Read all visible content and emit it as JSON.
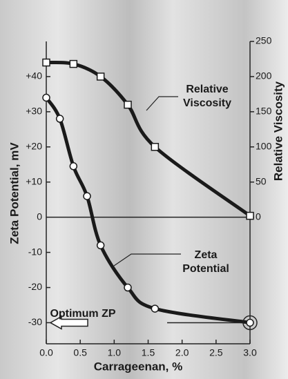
{
  "chart_data": {
    "type": "line",
    "x_label": "Carrageenan, %",
    "y_label": "Zeta Potential, mV",
    "y2_label": "Relative Viscosity",
    "xlim": [
      0,
      3
    ],
    "xticks": [
      {
        "value": 0,
        "label": "0.0"
      },
      0.5,
      {
        "value": 1,
        "label": "1.0"
      },
      1.5,
      {
        "value": 2,
        "label": "2.0"
      },
      2.5,
      {
        "value": 3,
        "label": "3.0"
      }
    ],
    "ylim": [
      -36,
      50
    ],
    "yticks": [
      -30,
      -20,
      -10,
      0,
      {
        "value": 10,
        "label": "+10"
      },
      {
        "value": 20,
        "label": "+20"
      },
      {
        "value": 30,
        "label": "+30"
      },
      {
        "value": 40,
        "label": "+40"
      }
    ],
    "y2lim": [
      -180,
      250
    ],
    "y2ticks": [
      0,
      50,
      100,
      150,
      200,
      250
    ],
    "series": [
      {
        "axis": "y2",
        "marker": "square",
        "color": "#1a1a1a",
        "x": [
          0,
          0.4,
          0.8,
          1.2,
          1.6,
          3.0
        ],
        "values": [
          220,
          218,
          200,
          160,
          100,
          2
        ]
      },
      {
        "axis": "y",
        "marker": "circle",
        "color": "#1a1a1a",
        "x": [
          0,
          0.2,
          0.4,
          0.6,
          0.8,
          1.2,
          1.6,
          3.0
        ],
        "values": [
          34,
          28,
          14.5,
          6,
          -8,
          -20,
          -26,
          -30
        ]
      }
    ],
    "annotations": [
      {
        "lines": [
          "Relative",
          "Viscosity"
        ]
      },
      {
        "lines": [
          "Zeta",
          "Potential"
        ]
      },
      {
        "lines": [
          "Optimum ZP"
        ]
      }
    ]
  }
}
